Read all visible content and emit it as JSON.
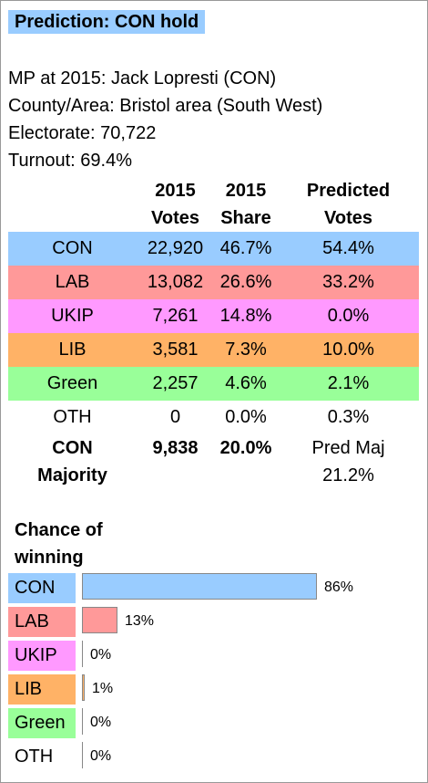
{
  "colors": {
    "CON": "#99ccff",
    "LAB": "#ff9999",
    "UKIP": "#ff99ff",
    "LIB": "#ffb266",
    "Green": "#99ff99",
    "OTH": "#ffffff"
  },
  "prediction": "Prediction: CON hold",
  "info": [
    "MP at 2015: Jack Lopresti  (CON)",
    "County/Area: Bristol area (South West)",
    "Electorate: 70,722",
    "Turnout: 69.4%"
  ],
  "table": {
    "headers": [
      {
        "line1": "",
        "line2": ""
      },
      {
        "line1": "2015",
        "line2": "Votes"
      },
      {
        "line1": "2015",
        "line2": "Share"
      },
      {
        "line1": "Predicted",
        "line2": "Votes"
      }
    ],
    "rows": [
      {
        "party": "CON",
        "votes": "22,920",
        "share": "46.7%",
        "pred": "54.4%"
      },
      {
        "party": "LAB",
        "votes": "13,082",
        "share": "26.6%",
        "pred": "33.2%"
      },
      {
        "party": "UKIP",
        "votes": "7,261",
        "share": "14.8%",
        "pred": "0.0%"
      },
      {
        "party": "LIB",
        "votes": "3,581",
        "share": "7.3%",
        "pred": "10.0%"
      },
      {
        "party": "Green",
        "votes": "2,257",
        "share": "4.6%",
        "pred": "2.1%"
      },
      {
        "party": "OTH",
        "votes": "0",
        "share": "0.0%",
        "pred": "0.3%"
      }
    ],
    "majority": {
      "label1": "CON",
      "label2": "Majority",
      "votes": "9,838",
      "share": "20.0%",
      "pred1": "Pred Maj",
      "pred2": "21.2%"
    }
  },
  "chance": {
    "title1": "Chance of",
    "title2": "winning",
    "bars": [
      {
        "party": "CON",
        "pct": 86,
        "label": "86%"
      },
      {
        "party": "LAB",
        "pct": 13,
        "label": "13%"
      },
      {
        "party": "UKIP",
        "pct": 0,
        "label": "0%"
      },
      {
        "party": "LIB",
        "pct": 1,
        "label": "1%"
      },
      {
        "party": "Green",
        "pct": 0,
        "label": "0%"
      },
      {
        "party": "OTH",
        "pct": 0,
        "label": "0%"
      }
    ]
  }
}
